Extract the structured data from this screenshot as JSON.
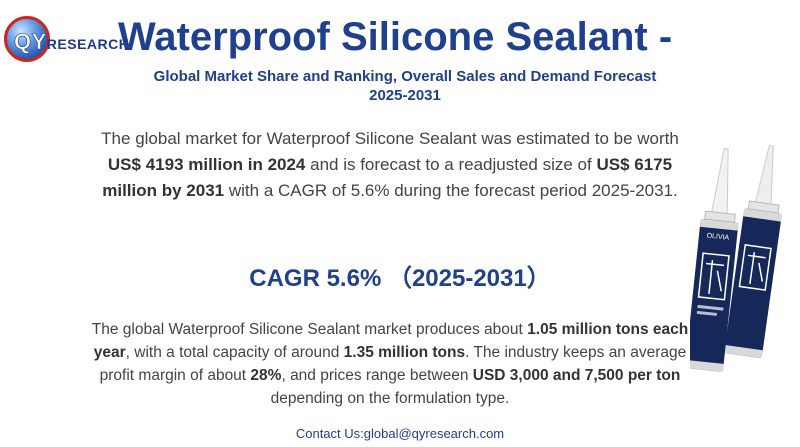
{
  "logo": {
    "q_letter": "QY",
    "rest": "RESEARCH"
  },
  "title": "Waterproof Silicone Sealant -",
  "subtitle": "Global Market Share and Ranking, Overall Sales and Demand Forecast 2025-2031",
  "para1": {
    "t1": "The global market for Waterproof Silicone Sealant was estimated to be worth ",
    "b1": "US$ 4193 million in 2024",
    "t2": " and is forecast to a readjusted size of ",
    "b2": "US$ 6175 million by 2031",
    "t3": " with a CAGR of 5.6% during the forecast period 2025-2031."
  },
  "cagr": "CAGR 5.6%  （2025-2031）",
  "para2": {
    "t1": "The global Waterproof Silicone Sealant market produces about ",
    "b1": "1.05 million tons each year",
    "t2": ", with a total capacity of around ",
    "b2": "1.35 million tons",
    "t3": ". The industry keeps an average profit margin of about ",
    "b3": "28%",
    "t4": ", and prices range between ",
    "b4": "USD 3,000 and 7,500 per ton",
    "t5": " depending on the formulation type."
  },
  "contact": "Contact Us:global@qyresearch.com",
  "product": {
    "brand": "OLIVIA"
  },
  "colors": {
    "brand_blue": "#1f3f8f",
    "logo_red": "#d0241c",
    "tube_navy": "#16285a"
  }
}
